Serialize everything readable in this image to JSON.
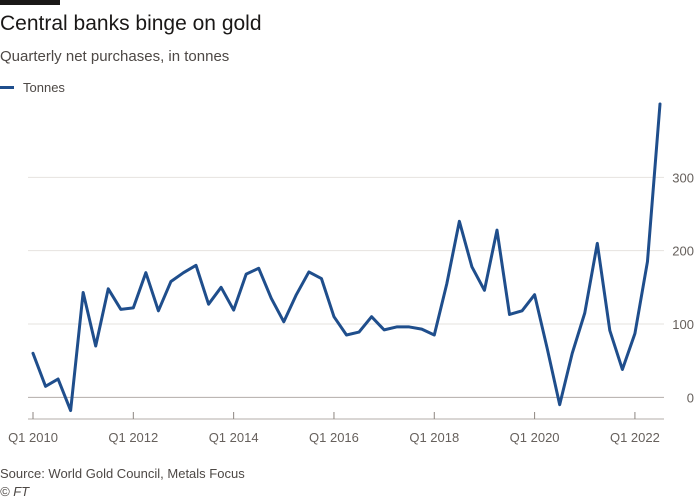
{
  "chart_data": {
    "type": "line",
    "title": "Central banks binge on gold",
    "subtitle": "Quarterly net purchases, in tonnes",
    "xlabel": "",
    "ylabel": "",
    "ylim": [
      -20,
      400
    ],
    "yticks": [
      0,
      100,
      200,
      300
    ],
    "xtick_labels": [
      {
        "label": "Q1 2010",
        "index": 0
      },
      {
        "label": "Q1 2012",
        "index": 8
      },
      {
        "label": "Q1 2014",
        "index": 16
      },
      {
        "label": "Q1 2016",
        "index": 24
      },
      {
        "label": "Q1 2018",
        "index": 32
      },
      {
        "label": "Q1 2020",
        "index": 40
      },
      {
        "label": "Q1 2022",
        "index": 48
      }
    ],
    "series": [
      {
        "name": "Tonnes",
        "color": "#1f4e8c",
        "values": [
          60,
          15,
          25,
          -18,
          143,
          70,
          148,
          120,
          122,
          170,
          118,
          158,
          170,
          180,
          127,
          150,
          119,
          168,
          176,
          135,
          103,
          140,
          171,
          162,
          110,
          85,
          89,
          110,
          92,
          96,
          96,
          93,
          85,
          155,
          240,
          178,
          146,
          228,
          113,
          118,
          140,
          67,
          -10,
          60,
          115,
          210,
          91,
          38,
          87,
          185,
          400
        ]
      }
    ]
  },
  "source": "Source: World Gold Council, Metals Focus",
  "credit": "© FT"
}
